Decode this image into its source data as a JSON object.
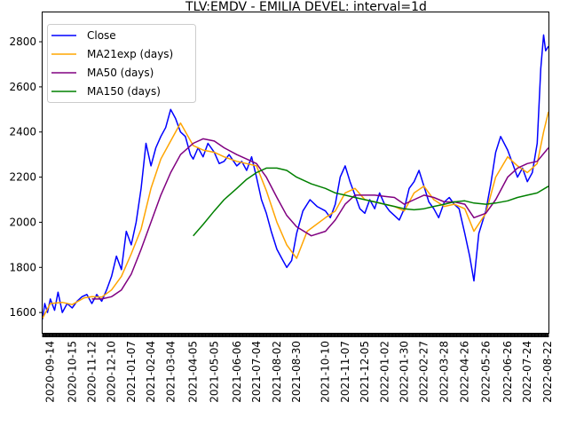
{
  "chart_data": {
    "type": "line",
    "title": "TLV:EMDV - EMILIA DEVEL: interval=1d",
    "xlabel": "",
    "ylabel": "",
    "ylim": [
      1510,
      2930
    ],
    "yticks": [
      1600,
      1800,
      2000,
      2200,
      2400,
      2600,
      2800
    ],
    "grid": false,
    "legend_position": "top-left",
    "x_start": "2020-09-03",
    "x_end": "2022-08-23",
    "xticks": [
      "2020-09-14",
      "2020-10-15",
      "2020-11-12",
      "2020-12-10",
      "2021-01-07",
      "2021-02-04",
      "2021-03-04",
      "2021-04-05",
      "2021-05-05",
      "2021-06-06",
      "2021-07-04",
      "2021-08-02",
      "2021-08-30",
      "2021-10-10",
      "2021-11-07",
      "2021-12-05",
      "2022-01-02",
      "2022-01-30",
      "2022-02-27",
      "2022-03-28",
      "2022-04-26",
      "2022-05-26",
      "2022-06-26",
      "2022-07-24",
      "2022-08-22"
    ],
    "series": [
      {
        "name": "Close",
        "color": "#0000ff",
        "points": [
          [
            "2020-09-03",
            1570
          ],
          [
            "2020-09-06",
            1640
          ],
          [
            "2020-09-10",
            1600
          ],
          [
            "2020-09-14",
            1660
          ],
          [
            "2020-09-20",
            1610
          ],
          [
            "2020-09-25",
            1690
          ],
          [
            "2020-10-01",
            1600
          ],
          [
            "2020-10-08",
            1640
          ],
          [
            "2020-10-15",
            1620
          ],
          [
            "2020-10-22",
            1650
          ],
          [
            "2020-10-29",
            1670
          ],
          [
            "2020-11-05",
            1680
          ],
          [
            "2020-11-12",
            1640
          ],
          [
            "2020-11-19",
            1680
          ],
          [
            "2020-11-26",
            1650
          ],
          [
            "2020-12-03",
            1700
          ],
          [
            "2020-12-10",
            1760
          ],
          [
            "2020-12-17",
            1850
          ],
          [
            "2020-12-24",
            1790
          ],
          [
            "2020-12-31",
            1960
          ],
          [
            "2021-01-07",
            1900
          ],
          [
            "2021-01-14",
            2000
          ],
          [
            "2021-01-21",
            2150
          ],
          [
            "2021-01-28",
            2350
          ],
          [
            "2021-02-04",
            2250
          ],
          [
            "2021-02-11",
            2330
          ],
          [
            "2021-02-18",
            2380
          ],
          [
            "2021-02-25",
            2420
          ],
          [
            "2021-03-04",
            2500
          ],
          [
            "2021-03-11",
            2460
          ],
          [
            "2021-03-18",
            2400
          ],
          [
            "2021-03-25",
            2380
          ],
          [
            "2021-04-01",
            2300
          ],
          [
            "2021-04-05",
            2280
          ],
          [
            "2021-04-12",
            2330
          ],
          [
            "2021-04-19",
            2290
          ],
          [
            "2021-04-26",
            2350
          ],
          [
            "2021-05-05",
            2310
          ],
          [
            "2021-05-12",
            2260
          ],
          [
            "2021-05-19",
            2270
          ],
          [
            "2021-05-26",
            2300
          ],
          [
            "2021-06-06",
            2250
          ],
          [
            "2021-06-13",
            2270
          ],
          [
            "2021-06-20",
            2230
          ],
          [
            "2021-06-27",
            2290
          ],
          [
            "2021-07-04",
            2200
          ],
          [
            "2021-07-11",
            2100
          ],
          [
            "2021-07-18",
            2040
          ],
          [
            "2021-07-25",
            1960
          ],
          [
            "2021-08-02",
            1880
          ],
          [
            "2021-08-09",
            1840
          ],
          [
            "2021-08-16",
            1800
          ],
          [
            "2021-08-23",
            1830
          ],
          [
            "2021-08-30",
            1950
          ],
          [
            "2021-09-08",
            2050
          ],
          [
            "2021-09-18",
            2100
          ],
          [
            "2021-09-28",
            2070
          ],
          [
            "2021-10-10",
            2050
          ],
          [
            "2021-10-17",
            2020
          ],
          [
            "2021-10-24",
            2080
          ],
          [
            "2021-10-31",
            2200
          ],
          [
            "2021-11-07",
            2250
          ],
          [
            "2021-11-14",
            2180
          ],
          [
            "2021-11-21",
            2120
          ],
          [
            "2021-11-28",
            2060
          ],
          [
            "2021-12-05",
            2040
          ],
          [
            "2021-12-12",
            2100
          ],
          [
            "2021-12-19",
            2060
          ],
          [
            "2021-12-26",
            2130
          ],
          [
            "2022-01-02",
            2080
          ],
          [
            "2022-01-09",
            2050
          ],
          [
            "2022-01-16",
            2030
          ],
          [
            "2022-01-23",
            2010
          ],
          [
            "2022-01-30",
            2060
          ],
          [
            "2022-02-06",
            2150
          ],
          [
            "2022-02-13",
            2180
          ],
          [
            "2022-02-20",
            2230
          ],
          [
            "2022-02-27",
            2160
          ],
          [
            "2022-03-06",
            2090
          ],
          [
            "2022-03-13",
            2060
          ],
          [
            "2022-03-20",
            2020
          ],
          [
            "2022-03-28",
            2090
          ],
          [
            "2022-04-04",
            2110
          ],
          [
            "2022-04-11",
            2080
          ],
          [
            "2022-04-18",
            2060
          ],
          [
            "2022-04-26",
            1950
          ],
          [
            "2022-05-03",
            1850
          ],
          [
            "2022-05-09",
            1740
          ],
          [
            "2022-05-16",
            1950
          ],
          [
            "2022-05-26",
            2050
          ],
          [
            "2022-06-02",
            2170
          ],
          [
            "2022-06-09",
            2310
          ],
          [
            "2022-06-16",
            2380
          ],
          [
            "2022-06-26",
            2320
          ],
          [
            "2022-07-03",
            2260
          ],
          [
            "2022-07-10",
            2200
          ],
          [
            "2022-07-17",
            2240
          ],
          [
            "2022-07-24",
            2180
          ],
          [
            "2022-07-31",
            2220
          ],
          [
            "2022-08-07",
            2350
          ],
          [
            "2022-08-12",
            2680
          ],
          [
            "2022-08-16",
            2830
          ],
          [
            "2022-08-19",
            2760
          ],
          [
            "2022-08-23",
            2780
          ]
        ]
      },
      {
        "name": "MA21exp (days)",
        "color": "#ffa500",
        "points": [
          [
            "2020-09-03",
            1575
          ],
          [
            "2020-09-14",
            1640
          ],
          [
            "2020-10-01",
            1645
          ],
          [
            "2020-10-15",
            1635
          ],
          [
            "2020-11-01",
            1665
          ],
          [
            "2020-11-12",
            1670
          ],
          [
            "2020-11-26",
            1668
          ],
          [
            "2020-12-10",
            1700
          ],
          [
            "2020-12-24",
            1760
          ],
          [
            "2021-01-07",
            1860
          ],
          [
            "2021-01-21",
            1970
          ],
          [
            "2021-02-04",
            2150
          ],
          [
            "2021-02-18",
            2280
          ],
          [
            "2021-03-04",
            2360
          ],
          [
            "2021-03-18",
            2440
          ],
          [
            "2021-04-05",
            2340
          ],
          [
            "2021-04-19",
            2320
          ],
          [
            "2021-05-05",
            2310
          ],
          [
            "2021-05-19",
            2290
          ],
          [
            "2021-06-06",
            2270
          ],
          [
            "2021-06-20",
            2260
          ],
          [
            "2021-07-04",
            2250
          ],
          [
            "2021-07-18",
            2140
          ],
          [
            "2021-08-02",
            2000
          ],
          [
            "2021-08-16",
            1900
          ],
          [
            "2021-08-30",
            1840
          ],
          [
            "2021-09-14",
            1960
          ],
          [
            "2021-10-10",
            2020
          ],
          [
            "2021-10-24",
            2050
          ],
          [
            "2021-11-07",
            2130
          ],
          [
            "2021-11-21",
            2150
          ],
          [
            "2021-12-05",
            2100
          ],
          [
            "2021-12-19",
            2090
          ],
          [
            "2022-01-02",
            2080
          ],
          [
            "2022-01-16",
            2070
          ],
          [
            "2022-01-30",
            2050
          ],
          [
            "2022-02-13",
            2130
          ],
          [
            "2022-02-27",
            2160
          ],
          [
            "2022-03-13",
            2100
          ],
          [
            "2022-03-28",
            2070
          ],
          [
            "2022-04-11",
            2080
          ],
          [
            "2022-04-26",
            2060
          ],
          [
            "2022-05-09",
            1960
          ],
          [
            "2022-05-26",
            2040
          ],
          [
            "2022-06-09",
            2200
          ],
          [
            "2022-06-26",
            2290
          ],
          [
            "2022-07-10",
            2250
          ],
          [
            "2022-07-24",
            2220
          ],
          [
            "2022-08-07",
            2260
          ],
          [
            "2022-08-16",
            2400
          ],
          [
            "2022-08-23",
            2490
          ]
        ]
      },
      {
        "name": "MA50 (days)",
        "color": "#800080",
        "points": [
          [
            "2020-11-12",
            1660
          ],
          [
            "2020-11-26",
            1660
          ],
          [
            "2020-12-10",
            1670
          ],
          [
            "2020-12-24",
            1700
          ],
          [
            "2021-01-07",
            1770
          ],
          [
            "2021-01-21",
            1880
          ],
          [
            "2021-02-04",
            2000
          ],
          [
            "2021-02-18",
            2120
          ],
          [
            "2021-03-04",
            2220
          ],
          [
            "2021-03-18",
            2300
          ],
          [
            "2021-04-05",
            2350
          ],
          [
            "2021-04-19",
            2370
          ],
          [
            "2021-05-05",
            2360
          ],
          [
            "2021-05-19",
            2330
          ],
          [
            "2021-06-06",
            2300
          ],
          [
            "2021-06-20",
            2280
          ],
          [
            "2021-07-04",
            2260
          ],
          [
            "2021-07-18",
            2200
          ],
          [
            "2021-08-02",
            2110
          ],
          [
            "2021-08-16",
            2030
          ],
          [
            "2021-08-30",
            1980
          ],
          [
            "2021-09-20",
            1940
          ],
          [
            "2021-10-10",
            1960
          ],
          [
            "2021-10-24",
            2010
          ],
          [
            "2021-11-07",
            2080
          ],
          [
            "2021-11-21",
            2120
          ],
          [
            "2021-12-05",
            2120
          ],
          [
            "2021-12-19",
            2120
          ],
          [
            "2022-01-02",
            2115
          ],
          [
            "2022-01-16",
            2110
          ],
          [
            "2022-01-30",
            2080
          ],
          [
            "2022-02-13",
            2100
          ],
          [
            "2022-02-27",
            2120
          ],
          [
            "2022-03-13",
            2110
          ],
          [
            "2022-03-28",
            2090
          ],
          [
            "2022-04-11",
            2090
          ],
          [
            "2022-04-26",
            2080
          ],
          [
            "2022-05-09",
            2020
          ],
          [
            "2022-05-26",
            2040
          ],
          [
            "2022-06-09",
            2100
          ],
          [
            "2022-06-26",
            2200
          ],
          [
            "2022-07-10",
            2240
          ],
          [
            "2022-07-24",
            2260
          ],
          [
            "2022-08-07",
            2270
          ],
          [
            "2022-08-23",
            2330
          ]
        ]
      },
      {
        "name": "MA150 (days)",
        "color": "#008000",
        "points": [
          [
            "2021-04-05",
            1940
          ],
          [
            "2021-04-19",
            1990
          ],
          [
            "2021-05-05",
            2050
          ],
          [
            "2021-05-19",
            2100
          ],
          [
            "2021-06-06",
            2150
          ],
          [
            "2021-06-20",
            2190
          ],
          [
            "2021-07-04",
            2220
          ],
          [
            "2021-07-18",
            2240
          ],
          [
            "2021-08-02",
            2240
          ],
          [
            "2021-08-16",
            2230
          ],
          [
            "2021-08-30",
            2200
          ],
          [
            "2021-09-20",
            2170
          ],
          [
            "2021-10-10",
            2150
          ],
          [
            "2021-10-24",
            2130
          ],
          [
            "2021-11-07",
            2120
          ],
          [
            "2021-11-21",
            2110
          ],
          [
            "2021-12-05",
            2100
          ],
          [
            "2021-12-19",
            2090
          ],
          [
            "2022-01-02",
            2080
          ],
          [
            "2022-01-16",
            2070
          ],
          [
            "2022-01-30",
            2060
          ],
          [
            "2022-02-13",
            2055
          ],
          [
            "2022-02-27",
            2060
          ],
          [
            "2022-03-13",
            2070
          ],
          [
            "2022-03-28",
            2080
          ],
          [
            "2022-04-11",
            2090
          ],
          [
            "2022-04-26",
            2095
          ],
          [
            "2022-05-09",
            2085
          ],
          [
            "2022-05-26",
            2080
          ],
          [
            "2022-06-09",
            2085
          ],
          [
            "2022-06-26",
            2095
          ],
          [
            "2022-07-10",
            2110
          ],
          [
            "2022-07-24",
            2120
          ],
          [
            "2022-08-07",
            2130
          ],
          [
            "2022-08-23",
            2160
          ]
        ]
      }
    ]
  }
}
